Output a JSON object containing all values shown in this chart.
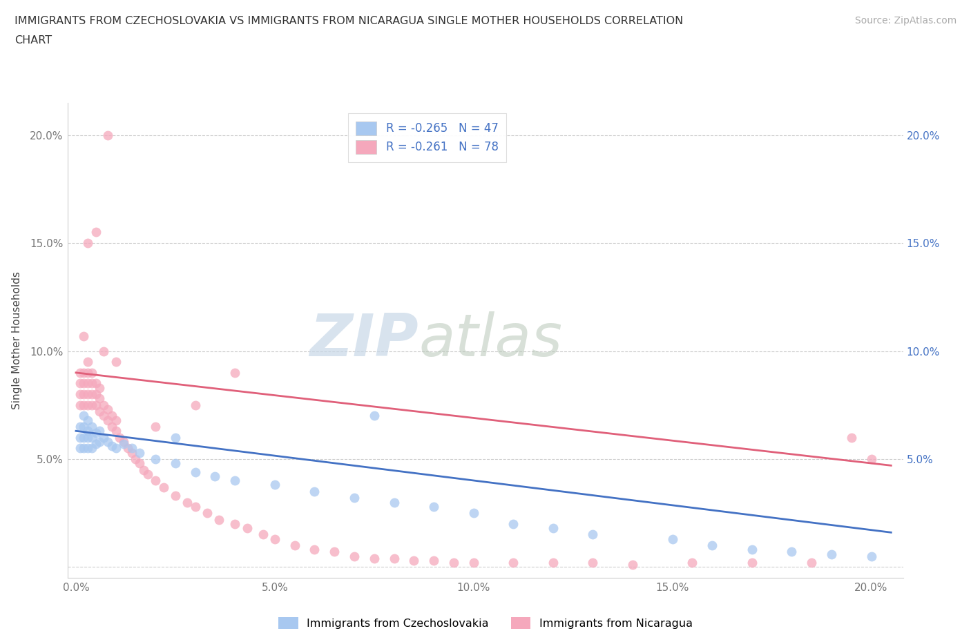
{
  "title_line1": "IMMIGRANTS FROM CZECHOSLOVAKIA VS IMMIGRANTS FROM NICARAGUA SINGLE MOTHER HOUSEHOLDS CORRELATION",
  "title_line2": "CHART",
  "source": "Source: ZipAtlas.com",
  "ylabel": "Single Mother Households",
  "xlim": [
    -0.002,
    0.208
  ],
  "ylim": [
    -0.005,
    0.215
  ],
  "xticks": [
    0.0,
    0.05,
    0.1,
    0.15,
    0.2
  ],
  "yticks": [
    0.0,
    0.05,
    0.1,
    0.15,
    0.2
  ],
  "xticklabels": [
    "0.0%",
    "5.0%",
    "10.0%",
    "15.0%",
    "20.0%"
  ],
  "left_yticklabels": [
    "",
    "5.0%",
    "10.0%",
    "15.0%",
    "20.0%"
  ],
  "right_yticklabels": [
    "",
    "5.0%",
    "10.0%",
    "15.0%",
    "20.0%"
  ],
  "color_czech": "#A8C8F0",
  "color_nicaragua": "#F5A8BC",
  "line_color_czech": "#4472C4",
  "line_color_nicaragua": "#E0607A",
  "r_czech": -0.265,
  "n_czech": 47,
  "r_nicaragua": -0.261,
  "n_nicaragua": 78,
  "watermark_zip": "ZIP",
  "watermark_atlas": "atlas",
  "legend_label_czech": "Immigrants from Czechoslovakia",
  "legend_label_nicaragua": "Immigrants from Nicaragua",
  "czech_x": [
    0.001,
    0.001,
    0.001,
    0.002,
    0.002,
    0.002,
    0.002,
    0.003,
    0.003,
    0.003,
    0.003,
    0.004,
    0.004,
    0.004,
    0.005,
    0.005,
    0.006,
    0.006,
    0.007,
    0.008,
    0.009,
    0.01,
    0.012,
    0.014,
    0.016,
    0.02,
    0.025,
    0.03,
    0.035,
    0.04,
    0.05,
    0.06,
    0.07,
    0.08,
    0.09,
    0.1,
    0.11,
    0.12,
    0.13,
    0.15,
    0.16,
    0.17,
    0.18,
    0.19,
    0.2,
    0.025,
    0.075
  ],
  "czech_y": [
    0.055,
    0.06,
    0.065,
    0.055,
    0.06,
    0.065,
    0.07,
    0.055,
    0.06,
    0.063,
    0.068,
    0.055,
    0.06,
    0.065,
    0.057,
    0.062,
    0.058,
    0.063,
    0.06,
    0.058,
    0.056,
    0.055,
    0.057,
    0.055,
    0.053,
    0.05,
    0.048,
    0.044,
    0.042,
    0.04,
    0.038,
    0.035,
    0.032,
    0.03,
    0.028,
    0.025,
    0.02,
    0.018,
    0.015,
    0.013,
    0.01,
    0.008,
    0.007,
    0.006,
    0.005,
    0.06,
    0.07
  ],
  "nicaragua_x": [
    0.001,
    0.001,
    0.001,
    0.001,
    0.002,
    0.002,
    0.002,
    0.002,
    0.003,
    0.003,
    0.003,
    0.003,
    0.003,
    0.004,
    0.004,
    0.004,
    0.004,
    0.005,
    0.005,
    0.005,
    0.006,
    0.006,
    0.006,
    0.007,
    0.007,
    0.008,
    0.008,
    0.009,
    0.009,
    0.01,
    0.01,
    0.011,
    0.012,
    0.013,
    0.014,
    0.015,
    0.016,
    0.017,
    0.018,
    0.02,
    0.022,
    0.025,
    0.028,
    0.03,
    0.033,
    0.036,
    0.04,
    0.043,
    0.047,
    0.05,
    0.055,
    0.06,
    0.065,
    0.07,
    0.075,
    0.08,
    0.085,
    0.09,
    0.095,
    0.1,
    0.11,
    0.12,
    0.13,
    0.14,
    0.155,
    0.17,
    0.185,
    0.195,
    0.2,
    0.007,
    0.003,
    0.005,
    0.02,
    0.04,
    0.01,
    0.03,
    0.002,
    0.008
  ],
  "nicaragua_y": [
    0.075,
    0.08,
    0.085,
    0.09,
    0.075,
    0.08,
    0.085,
    0.09,
    0.075,
    0.08,
    0.085,
    0.09,
    0.095,
    0.075,
    0.08,
    0.085,
    0.09,
    0.075,
    0.08,
    0.085,
    0.072,
    0.078,
    0.083,
    0.07,
    0.075,
    0.068,
    0.073,
    0.065,
    0.07,
    0.063,
    0.068,
    0.06,
    0.058,
    0.055,
    0.053,
    0.05,
    0.048,
    0.045,
    0.043,
    0.04,
    0.037,
    0.033,
    0.03,
    0.028,
    0.025,
    0.022,
    0.02,
    0.018,
    0.015,
    0.013,
    0.01,
    0.008,
    0.007,
    0.005,
    0.004,
    0.004,
    0.003,
    0.003,
    0.002,
    0.002,
    0.002,
    0.002,
    0.002,
    0.001,
    0.002,
    0.002,
    0.002,
    0.06,
    0.05,
    0.1,
    0.15,
    0.155,
    0.065,
    0.09,
    0.095,
    0.075,
    0.107,
    0.2
  ]
}
